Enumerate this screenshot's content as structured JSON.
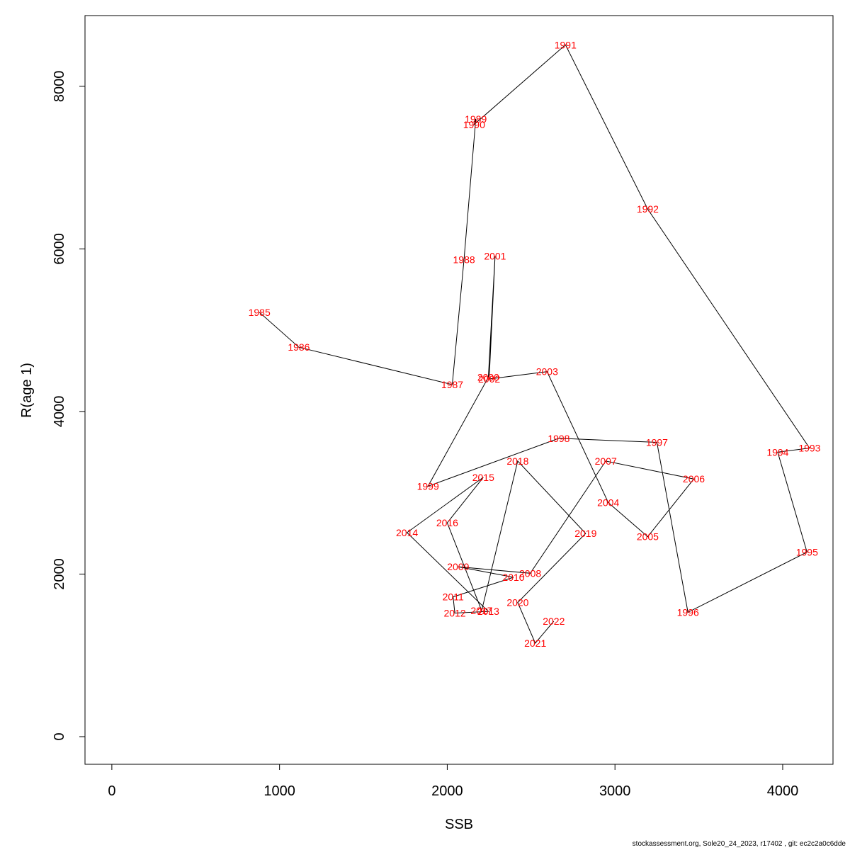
{
  "chart_data": {
    "type": "line",
    "xlabel": "SSB",
    "ylabel": "R(age 1)",
    "xlim": [
      -160,
      4300
    ],
    "ylim": [
      -340,
      8870
    ],
    "x_ticks": [
      0,
      1000,
      2000,
      3000,
      4000
    ],
    "y_ticks": [
      0,
      2000,
      4000,
      6000,
      8000
    ],
    "grid": false,
    "line_color": "#000000",
    "label_color": "#ff0000",
    "points": [
      {
        "label": "1985",
        "x": 880,
        "y": 5220
      },
      {
        "label": "1986",
        "x": 1115,
        "y": 4790
      },
      {
        "label": "1987",
        "x": 2030,
        "y": 4330
      },
      {
        "label": "1988",
        "x": 2100,
        "y": 5870
      },
      {
        "label": "1989",
        "x": 2170,
        "y": 7600
      },
      {
        "label": "1990",
        "x": 2160,
        "y": 7530
      },
      {
        "label": "1991",
        "x": 2705,
        "y": 8510
      },
      {
        "label": "1992",
        "x": 3195,
        "y": 6490
      },
      {
        "label": "1993",
        "x": 4160,
        "y": 3550
      },
      {
        "label": "1994",
        "x": 3970,
        "y": 3500
      },
      {
        "label": "1995",
        "x": 4145,
        "y": 2270
      },
      {
        "label": "1996",
        "x": 3435,
        "y": 1530
      },
      {
        "label": "1997",
        "x": 3250,
        "y": 3620
      },
      {
        "label": "1998",
        "x": 2665,
        "y": 3670
      },
      {
        "label": "1999",
        "x": 1885,
        "y": 3080
      },
      {
        "label": "2000",
        "x": 2245,
        "y": 4420
      },
      {
        "label": "2001",
        "x": 2285,
        "y": 5910
      },
      {
        "label": "2002",
        "x": 2250,
        "y": 4400
      },
      {
        "label": "2003",
        "x": 2595,
        "y": 4490
      },
      {
        "label": "2004",
        "x": 2960,
        "y": 2880
      },
      {
        "label": "2005",
        "x": 3195,
        "y": 2460
      },
      {
        "label": "2006",
        "x": 3470,
        "y": 3170
      },
      {
        "label": "2007",
        "x": 2945,
        "y": 3390
      },
      {
        "label": "2008",
        "x": 2495,
        "y": 2010
      },
      {
        "label": "2009",
        "x": 2065,
        "y": 2090
      },
      {
        "label": "2010",
        "x": 2395,
        "y": 1960
      },
      {
        "label": "2011",
        "x": 2035,
        "y": 1720
      },
      {
        "label": "2012",
        "x": 2045,
        "y": 1520
      },
      {
        "label": "2013",
        "x": 2245,
        "y": 1540
      },
      {
        "label": "2014",
        "x": 1760,
        "y": 2510
      },
      {
        "label": "2015",
        "x": 2215,
        "y": 3190
      },
      {
        "label": "2016",
        "x": 2000,
        "y": 2630
      },
      {
        "label": "2017",
        "x": 2205,
        "y": 1550
      },
      {
        "label": "2018",
        "x": 2420,
        "y": 3390
      },
      {
        "label": "2019",
        "x": 2825,
        "y": 2500
      },
      {
        "label": "2020",
        "x": 2420,
        "y": 1650
      },
      {
        "label": "2021",
        "x": 2525,
        "y": 1150
      },
      {
        "label": "2022",
        "x": 2635,
        "y": 1420
      }
    ]
  },
  "footer": {
    "text": "stockassessment.org, Sole20_24_2023, r17402 , git: ec2c2a0c6dde"
  }
}
